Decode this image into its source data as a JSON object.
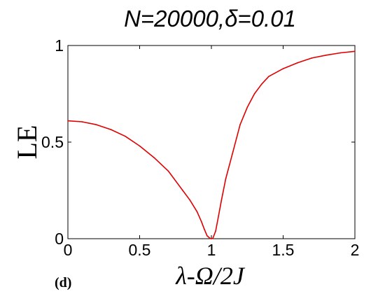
{
  "chart_data": {
    "type": "line",
    "title": "N=20000,δ=0.01",
    "xlabel": "λ-Ω/2J",
    "ylabel": "LE",
    "panel_label": "(d)",
    "xlim": [
      0,
      2
    ],
    "ylim": [
      0,
      1
    ],
    "xticks": [
      0,
      0.5,
      1,
      1.5,
      2
    ],
    "xtick_labels": [
      "0",
      "0.5",
      "1",
      "1.5",
      "2"
    ],
    "yticks": [
      0,
      0.5,
      1
    ],
    "ytick_labels": [
      "0",
      "0.5",
      "1"
    ],
    "grid": false,
    "series_color": "#e00000",
    "series": [
      {
        "x": [
          0,
          0.1,
          0.2,
          0.3,
          0.4,
          0.5,
          0.6,
          0.7,
          0.8,
          0.85,
          0.9,
          0.93,
          0.95,
          0.97,
          0.99,
          1.0,
          1.01,
          1.03,
          1.05,
          1.07,
          1.1,
          1.15,
          1.2,
          1.25,
          1.3,
          1.35,
          1.4,
          1.5,
          1.6,
          1.7,
          1.8,
          1.9,
          2.0
        ],
        "y": [
          0.61,
          0.605,
          0.59,
          0.565,
          0.53,
          0.48,
          0.42,
          0.35,
          0.25,
          0.2,
          0.14,
          0.09,
          0.05,
          0.015,
          0.002,
          0.0,
          0.002,
          0.04,
          0.12,
          0.2,
          0.31,
          0.45,
          0.59,
          0.68,
          0.75,
          0.8,
          0.84,
          0.88,
          0.91,
          0.935,
          0.95,
          0.962,
          0.97
        ]
      }
    ]
  }
}
